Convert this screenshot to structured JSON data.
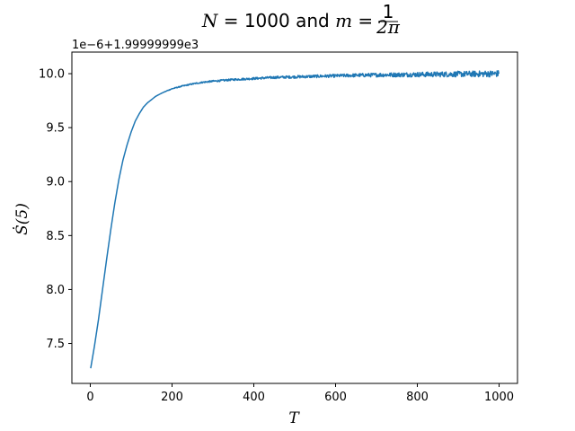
{
  "chart_data": {
    "type": "line",
    "title": {
      "part1_var": "N",
      "part1_rest": " = 1000 and ",
      "part2_var": "m",
      "part2_eq": " = ",
      "frac_num": "1",
      "frac_den": "2π"
    },
    "xlabel": "T",
    "ylabel": "Ṡ(5)",
    "y_offset_text": "1e−6+1.99999999e3",
    "xlim": [
      -45,
      1045
    ],
    "ylim": [
      7.13,
      10.2
    ],
    "xticks": [
      0,
      200,
      400,
      600,
      800,
      1000
    ],
    "xtick_labels": [
      "0",
      "200",
      "400",
      "600",
      "800",
      "1000"
    ],
    "yticks": [
      7.5,
      8.0,
      8.5,
      9.0,
      9.5,
      10.0
    ],
    "ytick_labels": [
      "7.5",
      "8.0",
      "8.5",
      "9.0",
      "9.5",
      "10.0"
    ],
    "grid": false,
    "series": [
      {
        "color": "#1f77b4",
        "x": [
          1,
          10,
          20,
          30,
          40,
          50,
          60,
          70,
          80,
          90,
          100,
          110,
          120,
          130,
          140,
          150,
          160,
          175,
          190,
          200,
          225,
          250,
          275,
          300,
          350,
          400,
          450,
          500,
          550,
          600,
          650,
          700,
          750,
          800,
          850,
          900,
          950,
          1000
        ],
        "y": [
          7.27,
          7.47,
          7.72,
          8.0,
          8.28,
          8.55,
          8.8,
          9.02,
          9.2,
          9.34,
          9.46,
          9.56,
          9.63,
          9.69,
          9.73,
          9.76,
          9.79,
          9.82,
          9.845,
          9.86,
          9.885,
          9.905,
          9.92,
          9.93,
          9.945,
          9.955,
          9.965,
          9.97,
          9.975,
          9.98,
          9.985,
          9.988,
          9.99,
          9.992,
          9.994,
          9.996,
          9.998,
          10.0
        ],
        "noise_amplitude": [
          0,
          0,
          0,
          0,
          0,
          0,
          0,
          0,
          0,
          0,
          0,
          0,
          0,
          0,
          0,
          0,
          0,
          0,
          0.003,
          0.004,
          0.005,
          0.006,
          0.007,
          0.008,
          0.009,
          0.01,
          0.011,
          0.012,
          0.013,
          0.014,
          0.016,
          0.018,
          0.02,
          0.022,
          0.024,
          0.026,
          0.028,
          0.03
        ]
      }
    ]
  }
}
